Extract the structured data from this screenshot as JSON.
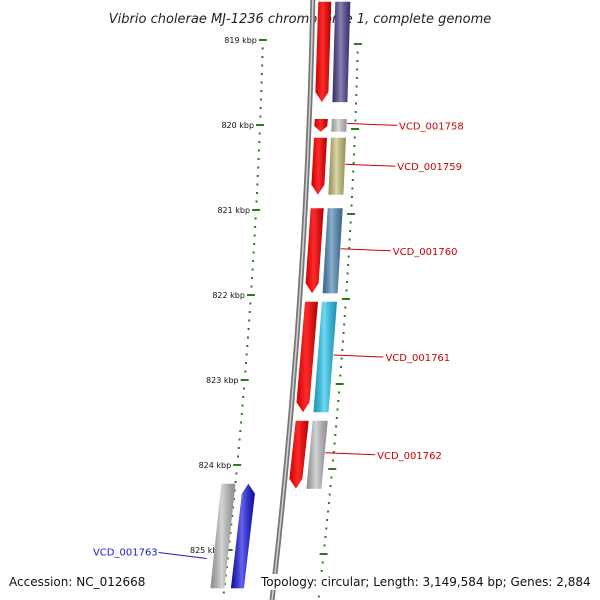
{
  "title": "Vibrio cholerae MJ-1236 chromosome 1, complete genome",
  "ticks": [
    {
      "label": "819 kbp",
      "pos": 819
    },
    {
      "label": "820 kbp",
      "pos": 820
    },
    {
      "label": "821 kbp",
      "pos": 821
    },
    {
      "label": "822 kbp",
      "pos": 822
    },
    {
      "label": "823 kbp",
      "pos": 823
    },
    {
      "label": "824 kbp",
      "pos": 824
    },
    {
      "label": "825 kbp",
      "pos": 825
    }
  ],
  "genes": [
    {
      "id": "VCD_001757",
      "label": "",
      "start": 818.55,
      "end": 819.73,
      "strand": "minus",
      "color": "#4b3f8c",
      "labelColor": "#cc0000"
    },
    {
      "id": "VCD_001758",
      "label": "VCD_001758",
      "start": 819.93,
      "end": 820.08,
      "strand": "minus",
      "color": "#c9c9c9",
      "labelColor": "#cc0000"
    },
    {
      "id": "VCD_001759",
      "label": "VCD_001759",
      "start": 820.15,
      "end": 820.82,
      "strand": "minus",
      "color": "#c8c27a",
      "labelColor": "#cc0000"
    },
    {
      "id": "VCD_001760",
      "label": "VCD_001760",
      "start": 820.98,
      "end": 821.98,
      "strand": "minus",
      "color": "#4f86b6",
      "labelColor": "#cc0000"
    },
    {
      "id": "VCD_001761",
      "label": "VCD_001761",
      "start": 822.08,
      "end": 823.38,
      "strand": "minus",
      "color": "#22c6ee",
      "labelColor": "#cc0000"
    },
    {
      "id": "VCD_001762",
      "label": "VCD_001762",
      "start": 823.48,
      "end": 824.28,
      "strand": "minus",
      "color": "#bdbdbd",
      "labelColor": "#cc0000"
    },
    {
      "id": "VCD_001763",
      "label": "VCD_001763",
      "start": 824.22,
      "end": 825.45,
      "strand": "plus",
      "color": "#1010e0",
      "labelColor": "#1a1ac8"
    }
  ],
  "footer": {
    "accession": "Accession: NC_012668",
    "topology": "Topology: circular; Length: 3,149,584 bp; Genes: 2,884"
  }
}
